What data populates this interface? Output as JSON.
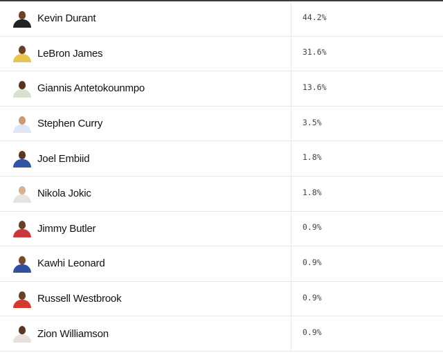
{
  "players": [
    {
      "name": "Kevin Durant",
      "value": "44.2%",
      "jersey": "#222222",
      "skin": "#6b4028"
    },
    {
      "name": "LeBron James",
      "value": "31.6%",
      "jersey": "#e8c550",
      "skin": "#6b4028"
    },
    {
      "name": "Giannis Antetokounmpo",
      "value": "13.6%",
      "jersey": "#d8e0d0",
      "skin": "#5a3420"
    },
    {
      "name": "Stephen Curry",
      "value": "3.5%",
      "jersey": "#dfe6f2",
      "skin": "#c79a78"
    },
    {
      "name": "Joel Embiid",
      "value": "1.8%",
      "jersey": "#2f55a8",
      "skin": "#5a3420"
    },
    {
      "name": "Nikola Jokic",
      "value": "1.8%",
      "jersey": "#e6e6e0",
      "skin": "#d9b090"
    },
    {
      "name": "Jimmy Butler",
      "value": "0.9%",
      "jersey": "#c8383c",
      "skin": "#6b4028"
    },
    {
      "name": "Kawhi Leonard",
      "value": "0.9%",
      "jersey": "#3050a0",
      "skin": "#7a4a2e"
    },
    {
      "name": "Russell Westbrook",
      "value": "0.9%",
      "jersey": "#d23a30",
      "skin": "#6b4028"
    },
    {
      "name": "Zion Williamson",
      "value": "0.9%",
      "jersey": "#e8e0e0",
      "skin": "#5a3420"
    }
  ]
}
